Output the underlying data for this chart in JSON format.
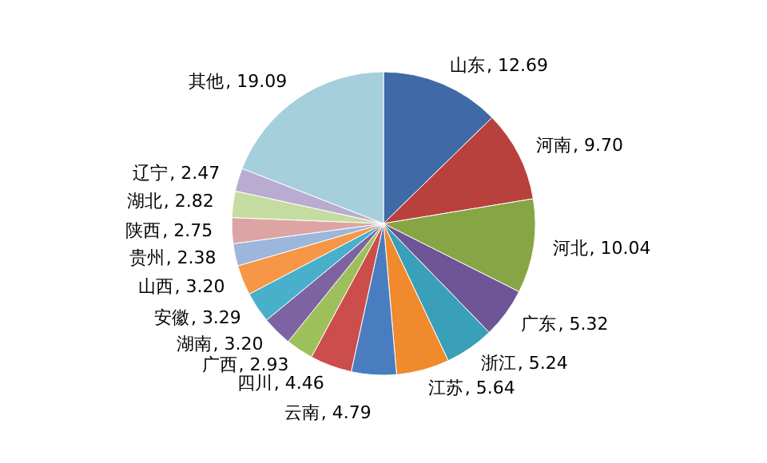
{
  "chart_data": {
    "type": "pie",
    "categories": [
      "山东",
      "河南",
      "河北",
      "广东",
      "浙江",
      "江苏",
      "云南",
      "四川",
      "广西",
      "湖南",
      "安徽",
      "山西",
      "贵州",
      "陕西",
      "湖北",
      "辽宁",
      "其他"
    ],
    "values": [
      12.69,
      9.7,
      10.04,
      5.32,
      5.24,
      5.64,
      4.79,
      4.46,
      2.93,
      3.2,
      3.29,
      3.2,
      2.38,
      2.75,
      2.82,
      2.47,
      19.09
    ],
    "value_labels": [
      ", 12.69",
      ", 9.70",
      ", 10.04",
      ", 5.32",
      ", 5.24",
      ", 5.64",
      ", 4.79",
      ", 4.46",
      ", 2.93",
      ", 3.20",
      ", 3.29",
      ", 3.20",
      ", 2.38",
      ", 2.75",
      ", 2.82",
      ", 2.47",
      ", 19.09"
    ],
    "colors": [
      "#3f6aa6",
      "#b9413d",
      "#86a544",
      "#6e5596",
      "#3a9fb8",
      "#f08a2c",
      "#4a7dc0",
      "#cc4e4b",
      "#9dc05a",
      "#7e63a3",
      "#48b0cb",
      "#f79646",
      "#9cb6dc",
      "#dca5a4",
      "#c5dca0",
      "#b9acd0",
      "#a5cfdc"
    ]
  }
}
